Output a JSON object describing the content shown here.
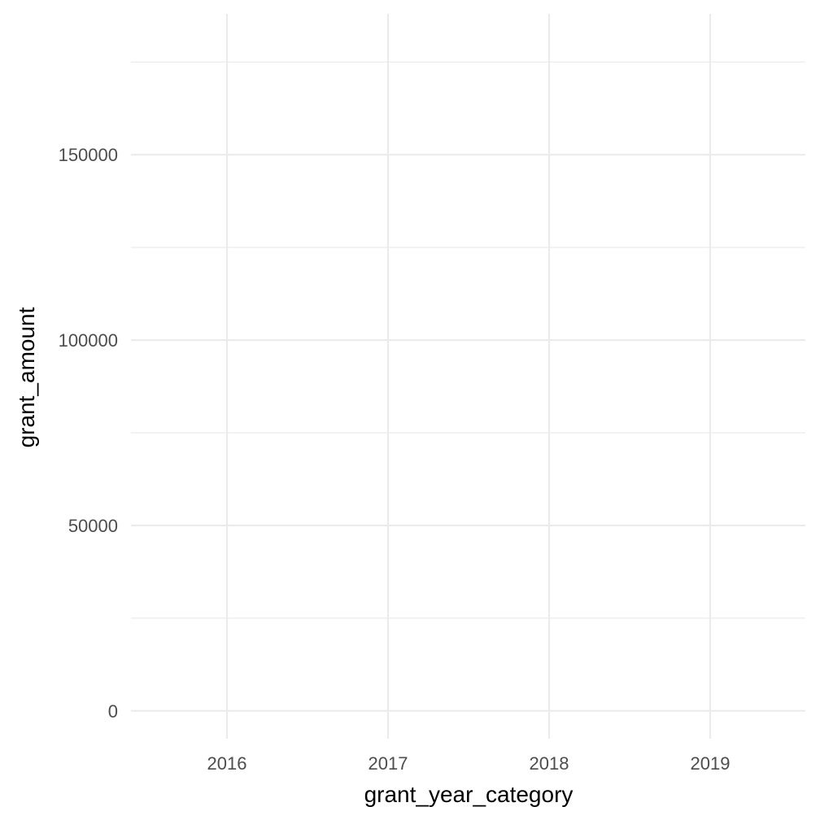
{
  "chart_data": {
    "type": "scatter",
    "title": "",
    "xlabel": "grant_year_category",
    "ylabel": "grant_amount",
    "categories": [
      "2016",
      "2017",
      "2018",
      "2019"
    ],
    "x_tick_labels": [
      "2016",
      "2017",
      "2018",
      "2019"
    ],
    "y_ticks": [
      0,
      50000,
      100000,
      150000
    ],
    "y_tick_labels": [
      "0",
      "50000",
      "100000",
      "150000"
    ],
    "y_minor_ticks": [
      25000,
      75000,
      125000,
      175000
    ],
    "ylim": [
      -7500,
      188000
    ],
    "series": [],
    "grid": true,
    "legend": "none",
    "background_color": "#ffffff",
    "grid_color": "#ebebeb",
    "tick_label_color": "#4d4d4d"
  }
}
